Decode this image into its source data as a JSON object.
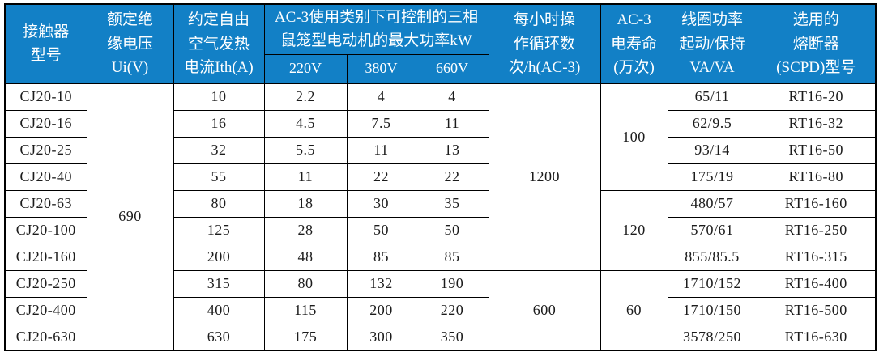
{
  "colors": {
    "header_bg": "#1280c6",
    "header_text": "#ffffff",
    "grid_line": "#000000",
    "body_text": "#1c1c1c",
    "body_bg": "#ffffff"
  },
  "table": {
    "header": {
      "model": "接触器\n型号",
      "ui_voltage": "额定绝\n缘电压\nUi(V)",
      "ith_current": "约定自由\n空气发热\n电流Ith(A)",
      "kw_group": "AC-3使用类别下可控制的三相\n鼠笼型电动机的最大功率kW",
      "kw_220": "220V",
      "kw_380": "380V",
      "kw_660": "660V",
      "cycles": "每小时操\n作循环数\n次/h(AC-3)",
      "life": "AC-3\n电寿命\n(万次)",
      "coil": "线圈功率\n起动/保持\nVA/VA",
      "fuse": "选用的\n熔断器\n(SCPD)型号"
    },
    "body_rows": [
      [
        {
          "t": "CJ20-10"
        },
        {
          "t": "690",
          "rs": 10
        },
        {
          "t": "10"
        },
        {
          "t": "2.2"
        },
        {
          "t": "4"
        },
        {
          "t": "4"
        },
        {
          "t": "1200",
          "rs": 7
        },
        {
          "t": "100",
          "rs": 4
        },
        {
          "t": "65/11"
        },
        {
          "t": "RT16-20"
        }
      ],
      [
        {
          "t": "CJ20-16"
        },
        {
          "t": "16"
        },
        {
          "t": "4.5"
        },
        {
          "t": "7.5"
        },
        {
          "t": "11"
        },
        {
          "t": "62/9.5"
        },
        {
          "t": "RT16-32"
        }
      ],
      [
        {
          "t": "CJ20-25"
        },
        {
          "t": "32"
        },
        {
          "t": "5.5"
        },
        {
          "t": "11"
        },
        {
          "t": "13"
        },
        {
          "t": "93/14"
        },
        {
          "t": "RT16-50"
        }
      ],
      [
        {
          "t": "CJ20-40"
        },
        {
          "t": "55"
        },
        {
          "t": "11"
        },
        {
          "t": "22"
        },
        {
          "t": "22"
        },
        {
          "t": "175/19"
        },
        {
          "t": "RT16-80"
        }
      ],
      [
        {
          "t": "CJ20-63"
        },
        {
          "t": "80"
        },
        {
          "t": "18"
        },
        {
          "t": "30"
        },
        {
          "t": "35"
        },
        {
          "t": "120",
          "rs": 3
        },
        {
          "t": "480/57"
        },
        {
          "t": "RT16-160"
        }
      ],
      [
        {
          "t": "CJ20-100"
        },
        {
          "t": "125"
        },
        {
          "t": "28"
        },
        {
          "t": "50"
        },
        {
          "t": "50"
        },
        {
          "t": "570/61"
        },
        {
          "t": "RT16-250"
        }
      ],
      [
        {
          "t": "CJ20-160"
        },
        {
          "t": "200"
        },
        {
          "t": "48"
        },
        {
          "t": "85"
        },
        {
          "t": "85"
        },
        {
          "t": "855/85.5"
        },
        {
          "t": "RT16-315"
        }
      ],
      [
        {
          "t": "CJ20-250"
        },
        {
          "t": "315"
        },
        {
          "t": "80"
        },
        {
          "t": "132"
        },
        {
          "t": "190"
        },
        {
          "t": "600",
          "rs": 3
        },
        {
          "t": "60",
          "rs": 3
        },
        {
          "t": "1710/152"
        },
        {
          "t": "RT16-400"
        }
      ],
      [
        {
          "t": "CJ20-400"
        },
        {
          "t": "400"
        },
        {
          "t": "115"
        },
        {
          "t": "200"
        },
        {
          "t": "220"
        },
        {
          "t": "1710/150"
        },
        {
          "t": "RT16-500"
        }
      ],
      [
        {
          "t": "CJ20-630"
        },
        {
          "t": "630"
        },
        {
          "t": "175"
        },
        {
          "t": "300"
        },
        {
          "t": "350"
        },
        {
          "t": "3578/250"
        },
        {
          "t": "RT16-630"
        }
      ]
    ]
  }
}
